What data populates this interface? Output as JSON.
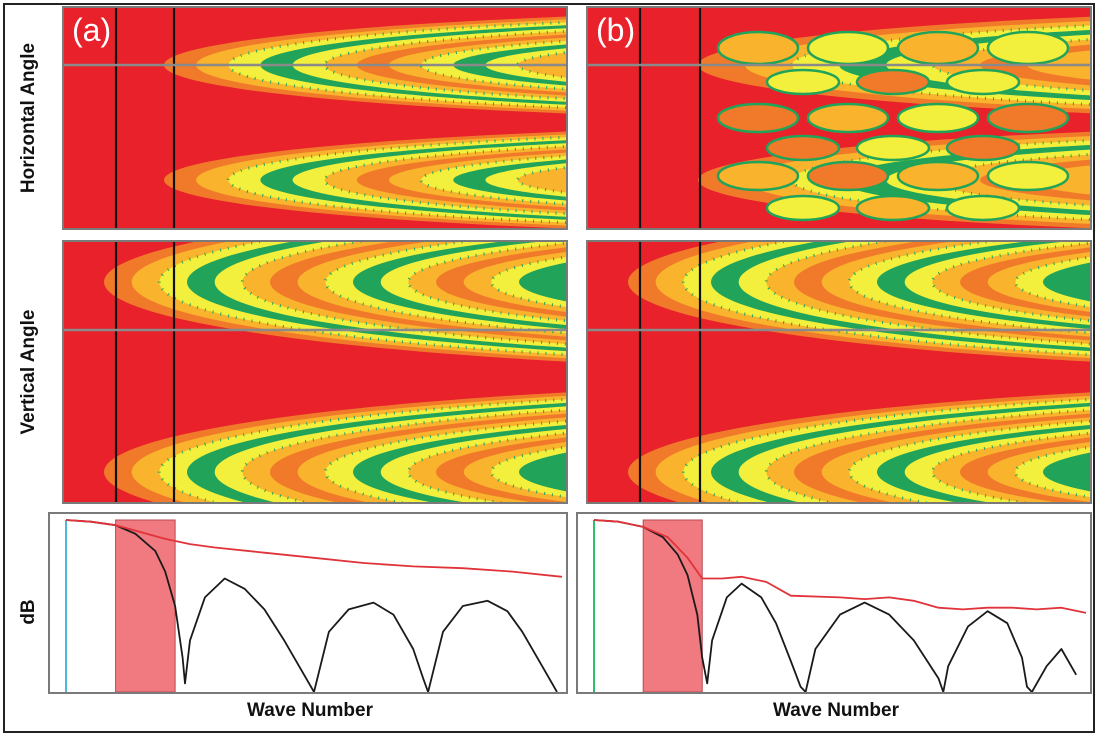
{
  "figure": {
    "row_labels": [
      "Horizontal Angle",
      "Vertical Angle",
      "dB"
    ],
    "x_axis_label": "Wave Number",
    "panel_tags": [
      "(a)",
      "(b)"
    ]
  },
  "colors": {
    "red": "#e8212b",
    "orange": "#f07a2a",
    "amber": "#f9b32d",
    "yellow": "#f2f03c",
    "green": "#22a35a",
    "spectrum_black": "#1a1a1a",
    "spectrum_red": "#e0333a",
    "band_fill": "#f07a80",
    "baseline_a": "#4fb8d6",
    "baseline_b": "#2fbf6a"
  },
  "chart_data": [
    {
      "panel": "(a)",
      "row": "Horizontal Angle",
      "type": "heatmap",
      "description_values": {
        "colorscale": [
          "red",
          "orange",
          "amber",
          "yellow",
          "green"
        ],
        "vertical_marker_lines": 2,
        "horizontal_reference_line": true
      }
    },
    {
      "panel": "(b)",
      "row": "Horizontal Angle",
      "type": "heatmap",
      "description_values": {
        "colorscale": [
          "red",
          "orange",
          "amber",
          "yellow",
          "green"
        ],
        "vertical_marker_lines": 2,
        "horizontal_reference_line": true
      }
    },
    {
      "panel": "(a)",
      "row": "Vertical Angle",
      "type": "heatmap",
      "description_values": {
        "colorscale": [
          "red",
          "orange",
          "amber",
          "yellow",
          "green"
        ],
        "vertical_marker_lines": 2,
        "horizontal_reference_line": true
      }
    },
    {
      "panel": "(b)",
      "row": "Vertical Angle",
      "type": "heatmap",
      "description_values": {
        "colorscale": [
          "red",
          "orange",
          "amber",
          "yellow",
          "green"
        ],
        "vertical_marker_lines": 2,
        "horizontal_reference_line": true
      }
    },
    {
      "panel": "(a)",
      "row": "dB",
      "type": "line",
      "xlabel": "Wave Number",
      "ylabel": "dB",
      "xlim": [
        0,
        1
      ],
      "ylim": [
        0,
        1
      ],
      "shaded_band": [
        0.1,
        0.22
      ],
      "series": [
        {
          "color": "black",
          "x": [
            0.0,
            0.05,
            0.1,
            0.14,
            0.18,
            0.2,
            0.22,
            0.235,
            0.24,
            0.25,
            0.28,
            0.32,
            0.36,
            0.4,
            0.44,
            0.47,
            0.5,
            0.5,
            0.53,
            0.57,
            0.62,
            0.66,
            0.7,
            0.72,
            0.73,
            0.76,
            0.8,
            0.85,
            0.89,
            0.92,
            0.96,
            0.99
          ],
          "y": [
            1.0,
            0.99,
            0.97,
            0.92,
            0.82,
            0.7,
            0.5,
            0.2,
            0.05,
            0.3,
            0.55,
            0.66,
            0.6,
            0.48,
            0.3,
            0.15,
            0.0,
            0.0,
            0.35,
            0.48,
            0.52,
            0.45,
            0.25,
            0.08,
            0.0,
            0.35,
            0.5,
            0.53,
            0.47,
            0.35,
            0.15,
            0.0
          ]
        },
        {
          "color": "red",
          "x": [
            0.0,
            0.05,
            0.1,
            0.15,
            0.2,
            0.25,
            0.3,
            0.4,
            0.5,
            0.6,
            0.7,
            0.8,
            0.9,
            1.0
          ],
          "y": [
            1.0,
            0.99,
            0.97,
            0.93,
            0.89,
            0.86,
            0.84,
            0.81,
            0.78,
            0.75,
            0.73,
            0.72,
            0.7,
            0.67
          ]
        }
      ]
    },
    {
      "panel": "(b)",
      "row": "dB",
      "type": "line",
      "xlabel": "Wave Number",
      "ylabel": "dB",
      "xlim": [
        0,
        1
      ],
      "ylim": [
        0,
        1
      ],
      "shaded_band": [
        0.1,
        0.22
      ],
      "series": [
        {
          "color": "black",
          "x": [
            0.0,
            0.05,
            0.1,
            0.14,
            0.17,
            0.19,
            0.21,
            0.22,
            0.23,
            0.24,
            0.27,
            0.3,
            0.34,
            0.37,
            0.4,
            0.42,
            0.43,
            0.45,
            0.5,
            0.55,
            0.6,
            0.65,
            0.7,
            0.71,
            0.72,
            0.76,
            0.8,
            0.84,
            0.87,
            0.88,
            0.89,
            0.92,
            0.95,
            0.98
          ],
          "y": [
            1.0,
            0.99,
            0.96,
            0.9,
            0.8,
            0.68,
            0.45,
            0.2,
            0.05,
            0.3,
            0.55,
            0.63,
            0.55,
            0.4,
            0.18,
            0.03,
            0.0,
            0.25,
            0.45,
            0.52,
            0.45,
            0.3,
            0.08,
            0.0,
            0.15,
            0.38,
            0.47,
            0.4,
            0.2,
            0.03,
            0.0,
            0.15,
            0.25,
            0.1
          ]
        },
        {
          "color": "red",
          "x": [
            0.0,
            0.05,
            0.1,
            0.15,
            0.19,
            0.22,
            0.26,
            0.3,
            0.35,
            0.4,
            0.5,
            0.55,
            0.6,
            0.65,
            0.7,
            0.75,
            0.8,
            0.85,
            0.9,
            0.95,
            1.0
          ],
          "y": [
            1.0,
            0.99,
            0.96,
            0.9,
            0.78,
            0.66,
            0.66,
            0.67,
            0.64,
            0.56,
            0.55,
            0.54,
            0.55,
            0.53,
            0.49,
            0.48,
            0.49,
            0.49,
            0.48,
            0.49,
            0.46
          ]
        }
      ]
    }
  ]
}
